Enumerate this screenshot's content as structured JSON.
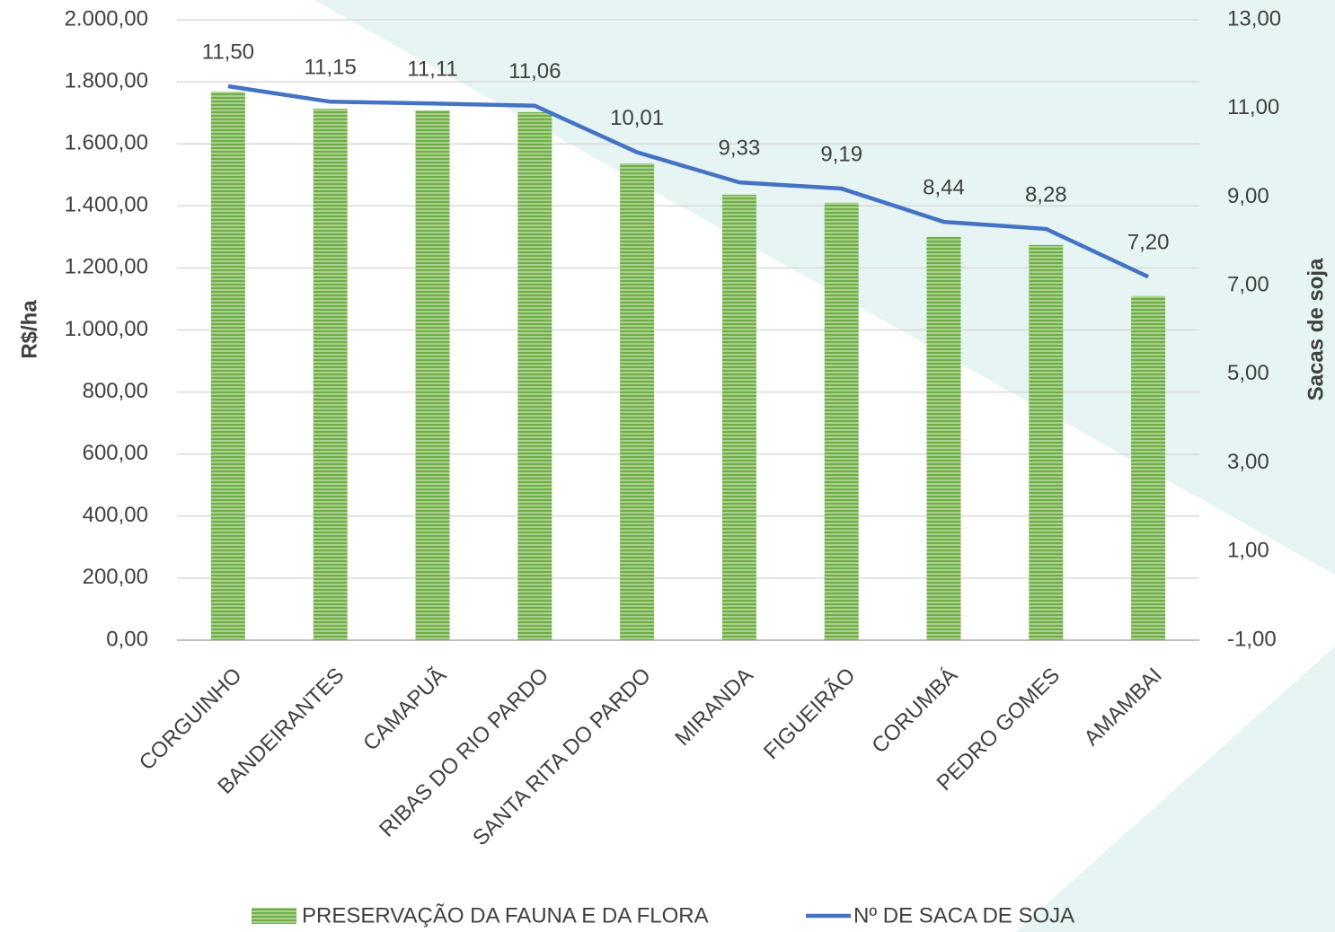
{
  "chart_data": {
    "type": "bar+line",
    "categories": [
      "CORGUINHO",
      "BANDEIRANTES",
      "CAMAPUÃ",
      "RIBAS DO RIO PARDO",
      "SANTA RITA DO PARDO",
      "MIRANDA",
      "FIGUEIRÃO",
      "CORUMBÁ",
      "PEDRO GOMES",
      "AMAMBAI"
    ],
    "ylabel": "R$/ha",
    "y2label": "Sacas de soja",
    "ylim": [
      0,
      2000
    ],
    "yticks": [
      {
        "value": 0,
        "label": "0,00"
      },
      {
        "value": 200,
        "label": "200,00"
      },
      {
        "value": 400,
        "label": "400,00"
      },
      {
        "value": 600,
        "label": "600,00"
      },
      {
        "value": 800,
        "label": "800,00"
      },
      {
        "value": 1000,
        "label": "1.000,00"
      },
      {
        "value": 1200,
        "label": "1.200,00"
      },
      {
        "value": 1400,
        "label": "1.400,00"
      },
      {
        "value": 1600,
        "label": "1.600,00"
      },
      {
        "value": 1800,
        "label": "1.800,00"
      },
      {
        "value": 2000,
        "label": "2.000,00"
      }
    ],
    "y2lim": [
      -1,
      13
    ],
    "y2ticks": [
      {
        "value": -1,
        "label": "-1,00"
      },
      {
        "value": 1,
        "label": "1,00"
      },
      {
        "value": 3,
        "label": "3,00"
      },
      {
        "value": 5,
        "label": "5,00"
      },
      {
        "value": 7,
        "label": "7,00"
      },
      {
        "value": 9,
        "label": "9,00"
      },
      {
        "value": 11,
        "label": "11,00"
      },
      {
        "value": 13,
        "label": "13,00"
      }
    ],
    "grid": true,
    "series": [
      {
        "name": "PRESERVAÇÃO DA FAUNA E DA FLORA",
        "type": "bar",
        "color": "#70ad47",
        "values": [
          1768,
          1713,
          1708,
          1702,
          1537,
          1436,
          1410,
          1300,
          1274,
          1109
        ]
      },
      {
        "name": "Nº DE SACA DE SOJA",
        "type": "line",
        "axis": "y2",
        "color": "#4472c4",
        "values": [
          11.5,
          11.15,
          11.11,
          11.06,
          10.01,
          9.33,
          9.19,
          8.44,
          8.28,
          7.2
        ],
        "value_labels": [
          "11,50",
          "11,15",
          "11,11",
          "11,06",
          "10,01",
          "9,33",
          "9,19",
          "8,44",
          "8,28",
          "7,20"
        ]
      }
    ]
  }
}
